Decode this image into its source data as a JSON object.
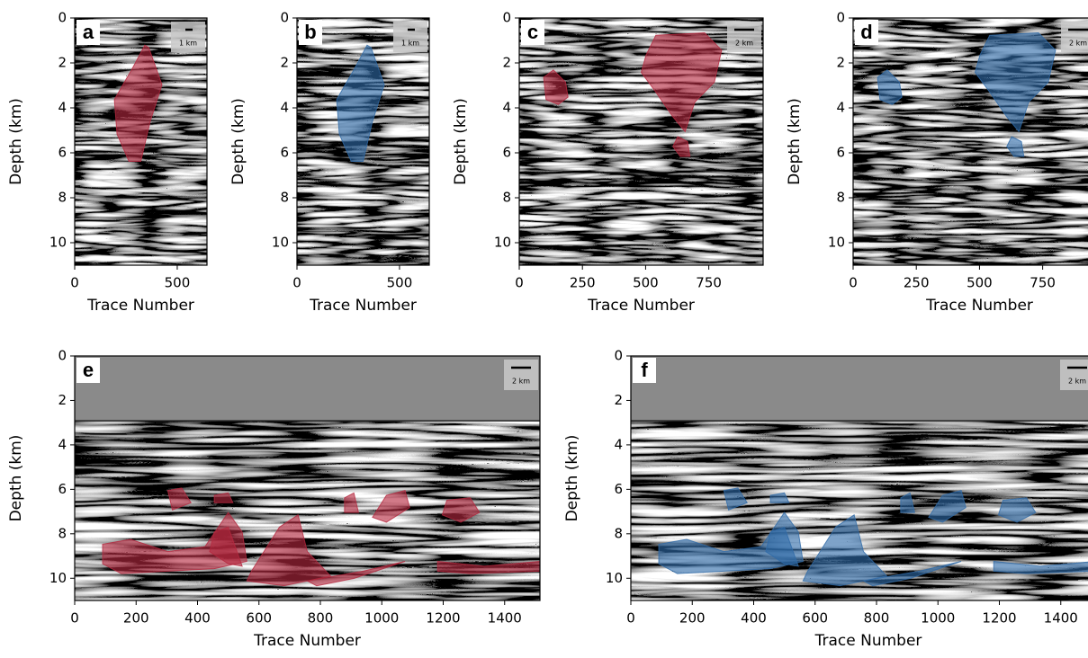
{
  "chart_data": [
    {
      "type": "image",
      "title": "a",
      "scale_bar": "1 km",
      "x_label": "Trace Number",
      "y_label": "Depth (km)",
      "xlim": [
        0,
        645
      ],
      "ylim": [
        11,
        0
      ],
      "xticks": [
        0,
        500
      ],
      "yticks": [
        0,
        2,
        4,
        6,
        8,
        10
      ],
      "mask_color": "#b5283f"
    },
    {
      "type": "image",
      "title": "b",
      "scale_bar": "1 km",
      "x_label": "Trace Number",
      "y_label": "Depth (km)",
      "xlim": [
        0,
        645
      ],
      "ylim": [
        11,
        0
      ],
      "xticks": [
        0,
        500
      ],
      "yticks": [
        0,
        2,
        4,
        6,
        8,
        10
      ],
      "mask_color": "#2f6aa8"
    },
    {
      "type": "image",
      "title": "c",
      "scale_bar": "2 km",
      "x_label": "Trace Number",
      "y_label": "Depth (km)",
      "xlim": [
        0,
        965
      ],
      "ylim": [
        11,
        0
      ],
      "xticks": [
        0,
        250,
        500,
        750
      ],
      "yticks": [
        0,
        2,
        4,
        6,
        8,
        10
      ],
      "mask_color": "#b5283f"
    },
    {
      "type": "image",
      "title": "d",
      "scale_bar": "2 km",
      "x_label": "Trace Number",
      "y_label": "Depth (km)",
      "xlim": [
        0,
        965
      ],
      "ylim": [
        11,
        0
      ],
      "xticks": [
        0,
        250,
        500,
        750
      ],
      "yticks": [
        0,
        2,
        4,
        6,
        8,
        10
      ],
      "mask_color": "#2f6aa8"
    },
    {
      "type": "image",
      "title": "e",
      "scale_bar": "2 km",
      "x_label": "Trace Number",
      "y_label": "Depth (km)",
      "xlim": [
        0,
        1515
      ],
      "ylim": [
        11,
        0
      ],
      "xticks": [
        0,
        200,
        400,
        600,
        800,
        1000,
        1200,
        1400
      ],
      "yticks": [
        0,
        2,
        4,
        6,
        8,
        10
      ],
      "mask_color": "#b5283f"
    },
    {
      "type": "image",
      "title": "f",
      "scale_bar": "2 km",
      "x_label": "Trace Number",
      "y_label": "Depth (km)",
      "xlim": [
        0,
        1515
      ],
      "ylim": [
        11,
        0
      ],
      "xticks": [
        0,
        200,
        400,
        600,
        800,
        1000,
        1200,
        1400
      ],
      "yticks": [
        0,
        2,
        4,
        6,
        8,
        10
      ],
      "mask_color": "#2f6aa8"
    }
  ]
}
